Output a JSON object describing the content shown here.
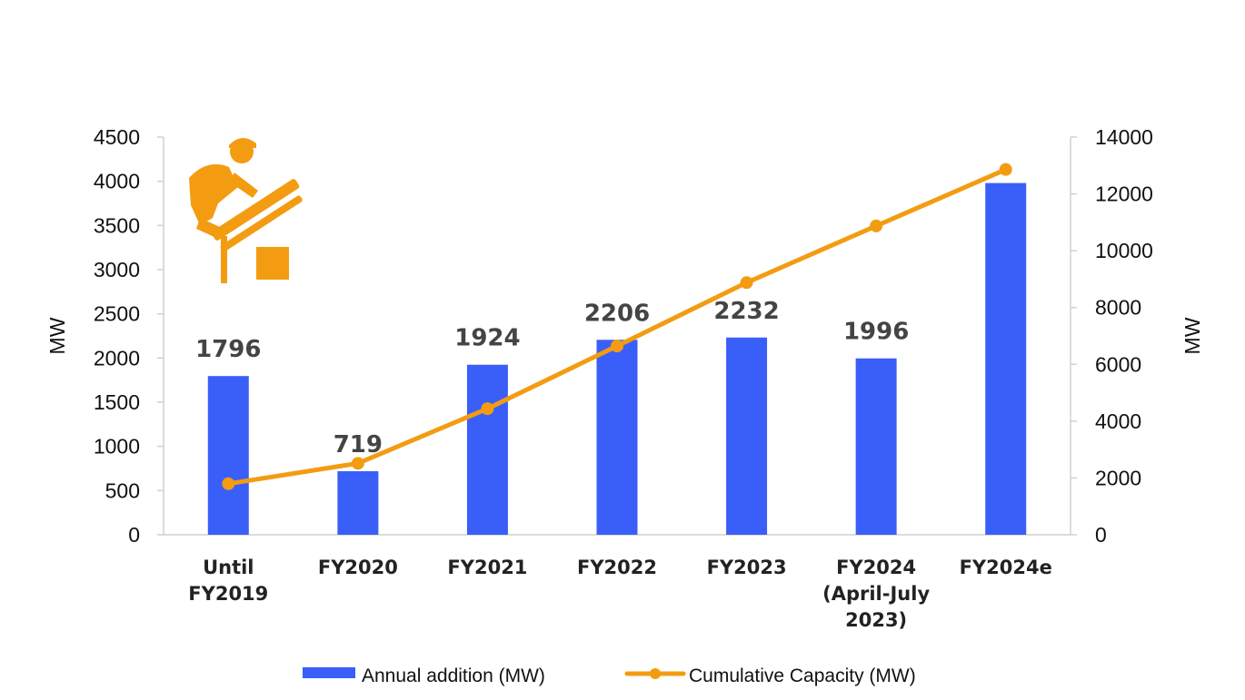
{
  "chart_data": {
    "type": "bar",
    "categories": [
      [
        "Until",
        "FY2019"
      ],
      [
        "FY2020"
      ],
      [
        "FY2021"
      ],
      [
        "FY2022"
      ],
      [
        "FY2023"
      ],
      [
        "FY2024",
        "(April-July",
        "2023)"
      ],
      [
        "FY2024e"
      ]
    ],
    "series": [
      {
        "name": "Annual addition (MW)",
        "type": "bar",
        "axis": "left",
        "values": [
          1796,
          719,
          1924,
          2206,
          2232,
          1996,
          3980
        ],
        "data_labels": [
          "1796",
          "719",
          "1924",
          "2206",
          "2232",
          "1996",
          ""
        ]
      },
      {
        "name": "Cumulative Capacity (MW)",
        "type": "line",
        "axis": "right",
        "values": [
          1796,
          2515,
          4439,
          6645,
          8877,
          10873,
          12860
        ]
      }
    ],
    "ylabel": "MW",
    "y2label": "MW",
    "ylim": [
      0,
      4500
    ],
    "yticks": [
      0,
      500,
      1000,
      1500,
      2000,
      2500,
      3000,
      3500,
      4000,
      4500
    ],
    "y2lim": [
      0,
      14000
    ],
    "y2ticks": [
      0,
      2000,
      4000,
      6000,
      8000,
      10000,
      12000,
      14000
    ],
    "grid": false,
    "legend": "bottom",
    "colors": {
      "bar": "#3a5ff8",
      "line": "#f39c12",
      "icon": "#f39c12"
    }
  },
  "decor": {
    "icon": "solar-panel-installer-icon"
  }
}
